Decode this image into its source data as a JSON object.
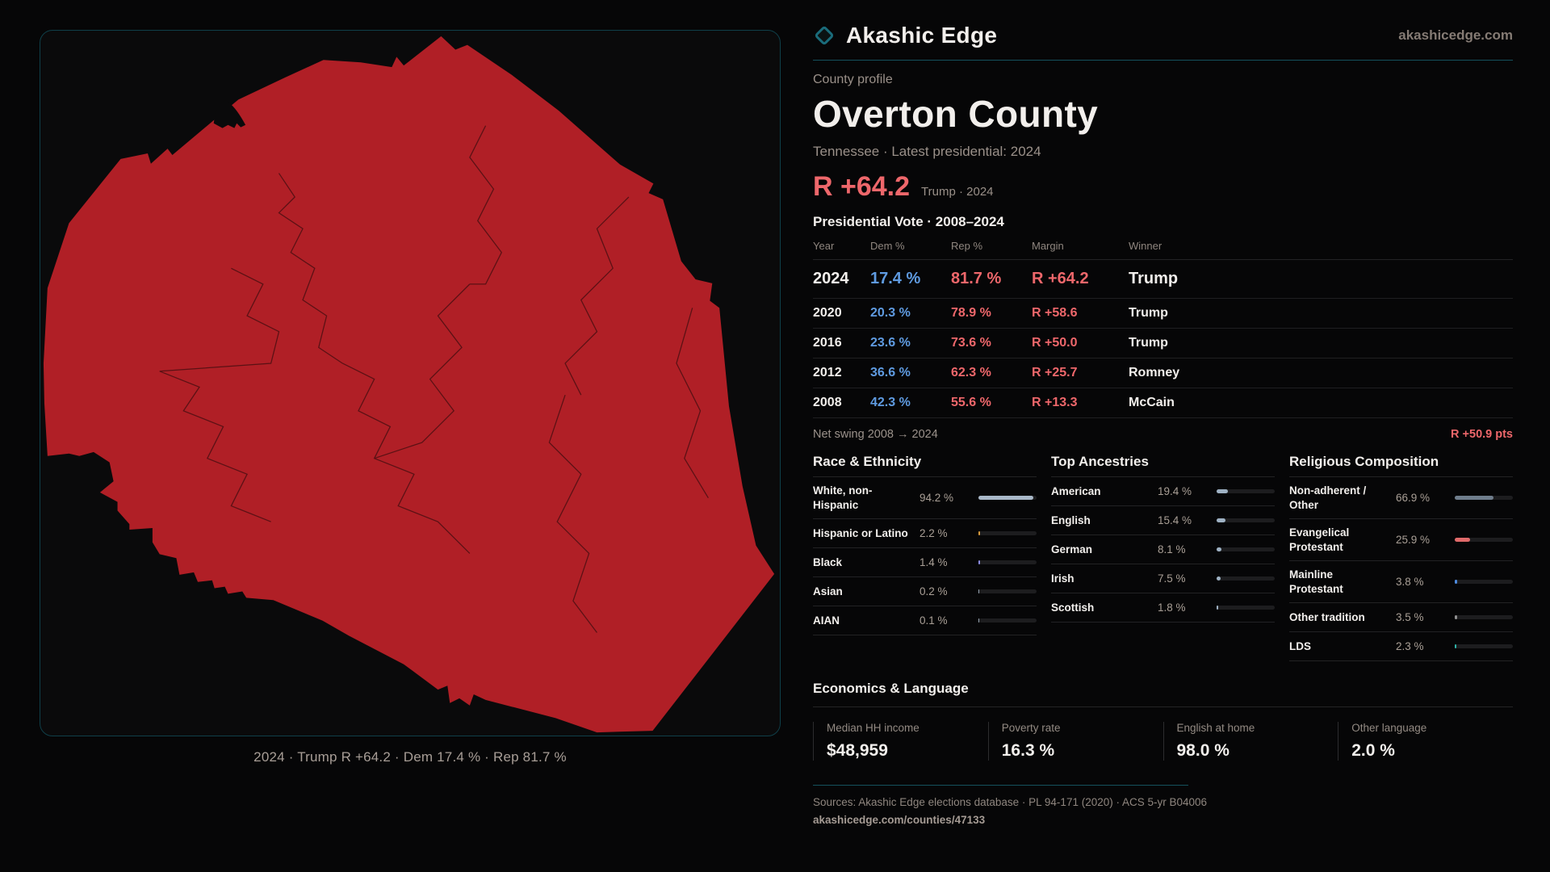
{
  "brand": {
    "name": "Akashic Edge",
    "domain": "akashicedge.com"
  },
  "profile": {
    "kicker": "County profile",
    "title": "Overton County",
    "subtitle": "Tennessee · Latest presidential: 2024",
    "margin_big": "R +64.2",
    "margin_context": "Trump · 2024"
  },
  "vote_table": {
    "title": "Presidential Vote · 2008–2024",
    "columns": [
      "Year",
      "Dem %",
      "Rep %",
      "Margin",
      "Winner"
    ],
    "rows": [
      {
        "year": "2024",
        "dem": "17.4 %",
        "rep": "81.7 %",
        "margin": "R +64.2",
        "winner": "Trump"
      },
      {
        "year": "2020",
        "dem": "20.3 %",
        "rep": "78.9 %",
        "margin": "R +58.6",
        "winner": "Trump"
      },
      {
        "year": "2016",
        "dem": "23.6 %",
        "rep": "73.6 %",
        "margin": "R +50.0",
        "winner": "Trump"
      },
      {
        "year": "2012",
        "dem": "36.6 %",
        "rep": "62.3 %",
        "margin": "R +25.7",
        "winner": "Romney"
      },
      {
        "year": "2008",
        "dem": "42.3 %",
        "rep": "55.6 %",
        "margin": "R +13.3",
        "winner": "McCain"
      }
    ],
    "net_swing_label": "Net swing 2008 → 2024",
    "net_swing_value": "R +50.9 pts"
  },
  "race": {
    "title": "Race & Ethnicity",
    "rows": [
      {
        "label": "White, non-Hispanic",
        "value": "94.2 %",
        "pct": 94.2,
        "color": "#a9b8c8"
      },
      {
        "label": "Hispanic or Latino",
        "value": "2.2 %",
        "pct": 2.2,
        "color": "#d79a3d"
      },
      {
        "label": "Black",
        "value": "1.4 %",
        "pct": 1.4,
        "color": "#8d8de2"
      },
      {
        "label": "Asian",
        "value": "0.2 %",
        "pct": 0.2,
        "color": "#9aa7b5"
      },
      {
        "label": "AIAN",
        "value": "0.1 %",
        "pct": 0.1,
        "color": "#9aa7b5"
      }
    ]
  },
  "ancestries": {
    "title": "Top Ancestries",
    "rows": [
      {
        "label": "American",
        "value": "19.4 %",
        "pct": 19.4,
        "color": "#9fb2c4"
      },
      {
        "label": "English",
        "value": "15.4 %",
        "pct": 15.4,
        "color": "#9fb2c4"
      },
      {
        "label": "German",
        "value": "8.1 %",
        "pct": 8.1,
        "color": "#9fb2c4"
      },
      {
        "label": "Irish",
        "value": "7.5 %",
        "pct": 7.5,
        "color": "#9fb2c4"
      },
      {
        "label": "Scottish",
        "value": "1.8 %",
        "pct": 1.8,
        "color": "#9fb2c4"
      }
    ]
  },
  "religion": {
    "title": "Religious Composition",
    "rows": [
      {
        "label": "Non-adherent / Other",
        "value": "66.9 %",
        "pct": 66.9,
        "color": "#6f7d8c"
      },
      {
        "label": "Evangelical Protestant",
        "value": "25.9 %",
        "pct": 25.9,
        "color": "#e06a6a"
      },
      {
        "label": "Mainline Protestant",
        "value": "3.8 %",
        "pct": 3.8,
        "color": "#4d8be0"
      },
      {
        "label": "Other tradition",
        "value": "3.5 %",
        "pct": 3.5,
        "color": "#909090"
      },
      {
        "label": "LDS",
        "value": "2.3 %",
        "pct": 2.3,
        "color": "#2fb3a8"
      }
    ]
  },
  "economics": {
    "title": "Economics & Language",
    "stats": [
      {
        "label": "Median HH income",
        "value": "$48,959"
      },
      {
        "label": "Poverty rate",
        "value": "16.3 %"
      },
      {
        "label": "English at home",
        "value": "98.0 %"
      },
      {
        "label": "Other language",
        "value": "2.0 %"
      }
    ]
  },
  "footer": {
    "sources": "Sources: Akashic Edge elections database · PL 94-171 (2020) · ACS 5-yr B04006",
    "permalink": "akashicedge.com/counties/47133"
  },
  "map": {
    "caption": "2024 · Trump R +64.2 · Dem 17.4 % · Rep 81.7 %",
    "fill": "#b01f26",
    "border": "#0f3f49"
  }
}
